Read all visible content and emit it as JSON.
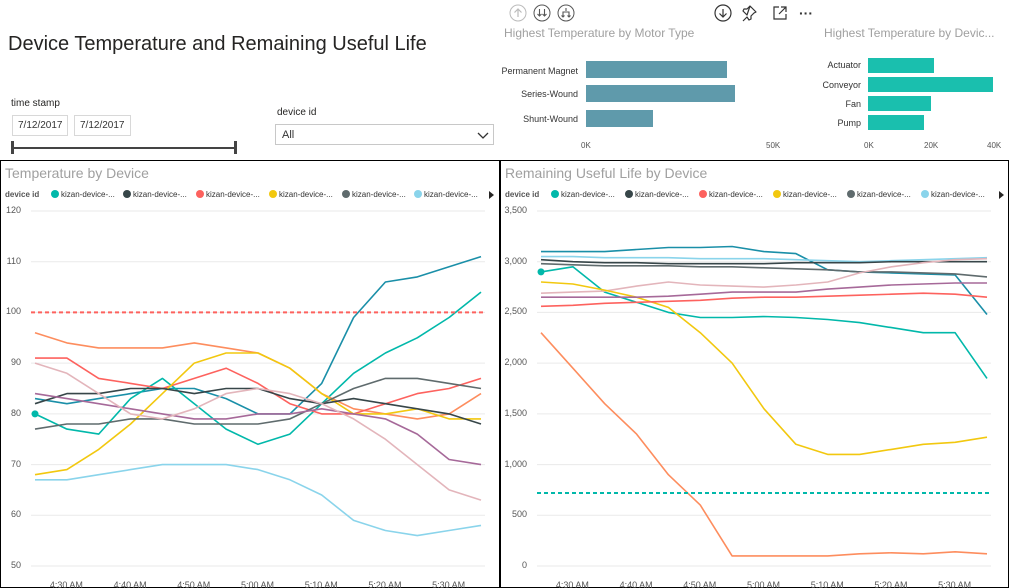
{
  "report": {
    "title": "Device Temperature and Remaining Useful Life"
  },
  "toolbar": {
    "icons": [
      "arrow-up-icon",
      "double-arrow-down-icon",
      "drill-fork-icon",
      "arrow-down-circle-icon",
      "pin-icon",
      "focus-mode-icon",
      "more-options-icon"
    ],
    "more_label": "···"
  },
  "slicers": {
    "timestamp": {
      "label": "time stamp",
      "start": "7/12/2017",
      "end": "7/12/2017"
    },
    "device": {
      "label": "device id",
      "selected": "All"
    }
  },
  "motor_chart": {
    "title": "Highest Temperature by Motor Type",
    "chart_data": {
      "type": "bar",
      "orientation": "horizontal",
      "title": "Highest Temperature by Motor Type",
      "categories": [
        "Permanent Magnet",
        "Series-Wound",
        "Shunt-Wound"
      ],
      "values": [
        37500,
        39500,
        17800
      ],
      "xlim": [
        0,
        50000
      ],
      "xticks": [
        "0K",
        "50K"
      ],
      "color": "#5f9aab"
    }
  },
  "device_type_chart": {
    "title": "Highest Temperature by Devic...",
    "chart_data": {
      "type": "bar",
      "orientation": "horizontal",
      "title": "Highest Temperature by Devic...",
      "categories": [
        "Actuator",
        "Conveyor",
        "Fan",
        "Pump"
      ],
      "values": [
        21000,
        40000,
        20000,
        18000
      ],
      "xlim": [
        0,
        40000
      ],
      "xticks": [
        "0K",
        "20K",
        "40K"
      ],
      "color": "#1abfae"
    }
  },
  "legend": {
    "key": "device id",
    "items": [
      {
        "label": "kizan-device-...",
        "color": "#01b8aa"
      },
      {
        "label": "kizan-device-...",
        "color": "#374649"
      },
      {
        "label": "kizan-device-...",
        "color": "#fd625e"
      },
      {
        "label": "kizan-device-...",
        "color": "#f2c80f"
      },
      {
        "label": "kizan-device-...",
        "color": "#5f6b6d"
      },
      {
        "label": "kizan-device-...",
        "color": "#8ad4eb"
      }
    ]
  },
  "temperature_chart": {
    "title": "Temperature by Device",
    "chart_data": {
      "type": "line",
      "title": "Temperature by Device",
      "x": [
        "4:25",
        "4:30",
        "4:35",
        "4:40",
        "4:45",
        "4:50",
        "4:55",
        "5:00",
        "5:05",
        "5:10",
        "5:15",
        "5:20",
        "5:25",
        "5:30",
        "5:35"
      ],
      "xticks": [
        "4:30 AM",
        "4:40 AM",
        "4:50 AM",
        "5:00 AM",
        "5:10 AM",
        "5:20 AM",
        "5:30 AM"
      ],
      "ylim": [
        50,
        120
      ],
      "yticks": [
        "50",
        "60",
        "70",
        "80",
        "90",
        "100",
        "110",
        "120"
      ],
      "reference_line": {
        "value": 100,
        "color": "#fd625e"
      },
      "series": [
        {
          "color": "#1a8fa8",
          "values": [
            83,
            82,
            83,
            84,
            85,
            85,
            83,
            80,
            80,
            86,
            99,
            106,
            107,
            109,
            111
          ]
        },
        {
          "color": "#01b8aa",
          "values": [
            80,
            77,
            76,
            83,
            87,
            82,
            77,
            74,
            76,
            82,
            88,
            92,
            95,
            99,
            104
          ]
        },
        {
          "color": "#fd8d5e",
          "values": [
            96,
            94,
            93,
            93,
            93,
            94,
            93,
            92,
            89,
            84,
            81,
            80,
            79,
            80,
            84
          ]
        },
        {
          "color": "#fd625e",
          "values": [
            91,
            91,
            87,
            86,
            85,
            87,
            89,
            86,
            82,
            80,
            80,
            82,
            84,
            85,
            87
          ]
        },
        {
          "color": "#f2c80f",
          "values": [
            68,
            69,
            73,
            78,
            84,
            90,
            92,
            92,
            89,
            84,
            80,
            80,
            81,
            79,
            79
          ]
        },
        {
          "color": "#374649",
          "values": [
            82,
            84,
            84,
            85,
            85,
            84,
            85,
            85,
            83,
            82,
            83,
            82,
            81,
            80,
            78
          ]
        },
        {
          "color": "#5f6b6d",
          "values": [
            77,
            78,
            78,
            79,
            79,
            78,
            78,
            78,
            79,
            82,
            85,
            87,
            87,
            86,
            85
          ]
        },
        {
          "color": "#a66999",
          "values": [
            84,
            83,
            82,
            81,
            80,
            79,
            79,
            80,
            80,
            81,
            80,
            79,
            76,
            71,
            70
          ]
        },
        {
          "color": "#e3b5bb",
          "values": [
            90,
            88,
            84,
            80,
            79,
            81,
            84,
            85,
            84,
            82,
            79,
            75,
            70,
            65,
            63
          ]
        },
        {
          "color": "#8ad4eb",
          "values": [
            67,
            67,
            68,
            69,
            70,
            70,
            70,
            69,
            67,
            64,
            59,
            57,
            56,
            57,
            58
          ]
        }
      ]
    }
  },
  "rul_chart": {
    "title": "Remaining Useful Life by Device",
    "chart_data": {
      "type": "line",
      "title": "Remaining Useful Life by Device",
      "x": [
        "4:25",
        "4:30",
        "4:35",
        "4:40",
        "4:45",
        "4:50",
        "4:55",
        "5:00",
        "5:05",
        "5:10",
        "5:15",
        "5:20",
        "5:25",
        "5:30",
        "5:35"
      ],
      "xticks": [
        "4:30 AM",
        "4:40 AM",
        "4:50 AM",
        "5:00 AM",
        "5:10 AM",
        "5:20 AM",
        "5:30 AM"
      ],
      "ylim": [
        0,
        3500
      ],
      "yticks": [
        "0",
        "500",
        "1,000",
        "1,500",
        "2,000",
        "2,500",
        "3,000",
        "3,500"
      ],
      "reference_line": {
        "value": 720,
        "color": "#01b8aa"
      },
      "series": [
        {
          "color": "#1a8fa8",
          "values": [
            3100,
            3100,
            3100,
            3120,
            3140,
            3140,
            3150,
            3100,
            3080,
            2920,
            2900,
            2890,
            2880,
            2870,
            2480
          ]
        },
        {
          "color": "#01b8aa",
          "values": [
            2900,
            2950,
            2700,
            2600,
            2500,
            2450,
            2450,
            2460,
            2450,
            2430,
            2400,
            2350,
            2300,
            2300,
            1850
          ]
        },
        {
          "color": "#8ad4eb",
          "values": [
            3050,
            3050,
            3040,
            3040,
            3040,
            3030,
            3030,
            3030,
            3020,
            3010,
            3000,
            3010,
            3020,
            3030,
            3040
          ]
        },
        {
          "color": "#374649",
          "values": [
            3020,
            3000,
            2990,
            2990,
            2980,
            2980,
            2980,
            2980,
            2990,
            2990,
            2990,
            3000,
            3000,
            3000,
            3000
          ]
        },
        {
          "color": "#5f6b6d",
          "values": [
            2980,
            2970,
            2960,
            2960,
            2960,
            2950,
            2950,
            2940,
            2930,
            2920,
            2900,
            2900,
            2890,
            2880,
            2850
          ]
        },
        {
          "color": "#e3b5bb",
          "values": [
            2690,
            2700,
            2710,
            2760,
            2800,
            2770,
            2760,
            2750,
            2770,
            2800,
            2890,
            2950,
            2990,
            3020,
            3030
          ]
        },
        {
          "color": "#f2c80f",
          "values": [
            2800,
            2780,
            2720,
            2650,
            2550,
            2300,
            2000,
            1550,
            1200,
            1100,
            1100,
            1150,
            1200,
            1220,
            1270
          ]
        },
        {
          "color": "#a66999",
          "values": [
            2650,
            2650,
            2650,
            2650,
            2660,
            2680,
            2700,
            2700,
            2700,
            2730,
            2750,
            2770,
            2780,
            2790,
            2790
          ]
        },
        {
          "color": "#fd625e",
          "values": [
            2560,
            2570,
            2590,
            2600,
            2610,
            2620,
            2640,
            2650,
            2650,
            2660,
            2670,
            2680,
            2690,
            2680,
            2650
          ]
        },
        {
          "color": "#fd8d5e",
          "values": [
            2300,
            1950,
            1600,
            1300,
            900,
            600,
            100,
            100,
            100,
            100,
            120,
            130,
            120,
            140,
            120
          ]
        }
      ]
    }
  }
}
